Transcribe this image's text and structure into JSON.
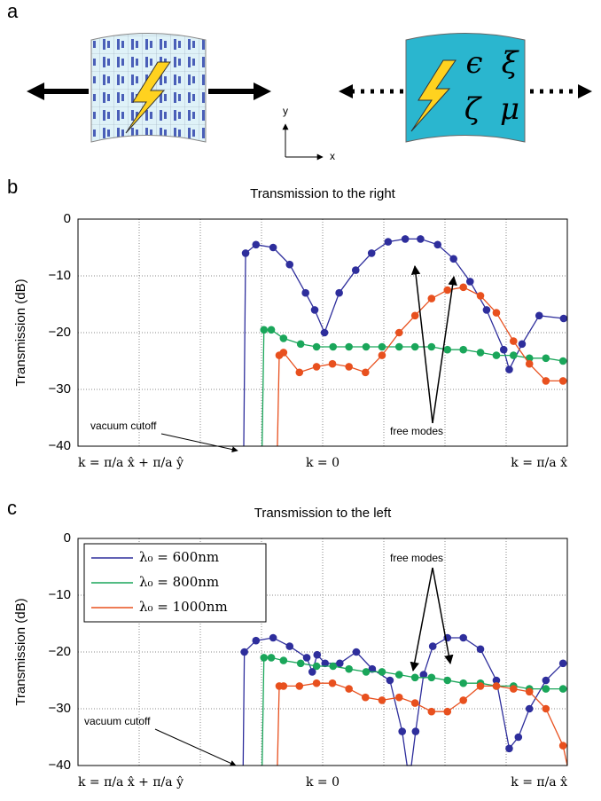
{
  "panel_a": {
    "label": "a",
    "axis_y": "y",
    "axis_x": "x",
    "symbols": [
      "ϵ",
      "ξ",
      "ζ",
      "μ"
    ]
  },
  "chart_data": [
    {
      "type": "line",
      "panel_label": "b",
      "title": "Transmission to the right",
      "ylabel": "Transmission (dB)",
      "ylim": [
        -40,
        0
      ],
      "yticks": [
        0,
        {
          "value": -10,
          "label": "−10"
        },
        {
          "value": -20,
          "label": "−20"
        },
        {
          "value": -30,
          "label": "−30"
        },
        {
          "value": -40,
          "label": "−40"
        }
      ],
      "xlim": [
        0,
        8
      ],
      "xgrid": [
        1,
        2,
        3,
        4,
        5,
        6,
        7
      ],
      "xlabels": [
        {
          "value": 0,
          "label": "k = π/a x̂ + π/a ŷ"
        },
        {
          "value": 4,
          "label": "k = 0"
        },
        {
          "value": 8,
          "label": "k = π/a x̂"
        }
      ],
      "grid": true,
      "annotations": [
        "vacuum cutoff",
        "free modes"
      ],
      "series": [
        {
          "color": "#2e2e9c",
          "x": [
            2.71,
            2.74,
            2.91,
            3.19,
            3.46,
            3.72,
            3.87,
            4.03,
            4.27,
            4.54,
            4.8,
            5.07,
            5.35,
            5.6,
            5.88,
            6.14,
            6.41,
            6.68,
            6.96,
            7.05,
            7.26,
            7.54,
            7.94
          ],
          "values": [
            -40,
            -6,
            -4.5,
            -5,
            -8,
            -13,
            -16,
            -20,
            -13,
            -9,
            -6,
            -4,
            -3.5,
            -3.5,
            -4.5,
            -7,
            -11,
            -16,
            -23,
            -26.5,
            -22,
            -17,
            -17.5
          ]
        },
        {
          "color": "#1aa65a",
          "x": [
            3.01,
            3.04,
            3.16,
            3.36,
            3.64,
            3.9,
            4.17,
            4.43,
            4.71,
            4.97,
            5.25,
            5.51,
            5.78,
            6.04,
            6.3,
            6.58,
            6.84,
            7.12,
            7.38,
            7.65,
            7.93
          ],
          "values": [
            -40,
            -19.5,
            -19.5,
            -21,
            -22,
            -22.5,
            -22.5,
            -22.5,
            -22.5,
            -22.5,
            -22.5,
            -22.5,
            -22.5,
            -23,
            -23,
            -23.5,
            -24,
            -24,
            -24.5,
            -24.5,
            -25
          ]
        },
        {
          "color": "#e8501e",
          "x": [
            3.26,
            3.29,
            3.36,
            3.62,
            3.9,
            4.16,
            4.43,
            4.7,
            4.97,
            5.25,
            5.51,
            5.78,
            6.04,
            6.3,
            6.58,
            6.84,
            7.12,
            7.38,
            7.65,
            7.93
          ],
          "values": [
            -40,
            -24,
            -23.5,
            -27,
            -26,
            -25.5,
            -26,
            -27,
            -24,
            -20,
            -17,
            -14,
            -12.5,
            -12,
            -13.5,
            -16.5,
            -21.5,
            -25.5,
            -28.5,
            -28.5
          ]
        }
      ]
    },
    {
      "type": "line",
      "panel_label": "c",
      "title": "Transmission to the left",
      "ylabel": "Transmission (dB)",
      "ylim": [
        -40,
        0
      ],
      "yticks": [
        0,
        {
          "value": -10,
          "label": "−10"
        },
        {
          "value": -20,
          "label": "−20"
        },
        {
          "value": -30,
          "label": "−30"
        },
        {
          "value": -40,
          "label": "−40"
        }
      ],
      "xlim": [
        0,
        8
      ],
      "xgrid": [
        1,
        2,
        3,
        4,
        5,
        6,
        7
      ],
      "xlabels": [
        {
          "value": 0,
          "label": "k = π/a x̂ + π/a ŷ"
        },
        {
          "value": 4,
          "label": "k = 0"
        },
        {
          "value": 8,
          "label": "k = π/a x̂"
        }
      ],
      "grid": true,
      "legend": "upper left",
      "annotations": [
        "vacuum cutoff",
        "free modes"
      ],
      "series": [
        {
          "name": "λ₀ = 600nm",
          "color": "#2e2e9c",
          "x": [
            2.7,
            2.72,
            2.91,
            3.19,
            3.46,
            3.74,
            3.83,
            3.91,
            4.04,
            4.28,
            4.55,
            4.81,
            5.1,
            5.3,
            5.38,
            5.45,
            5.52,
            5.65,
            5.8,
            6.04,
            6.3,
            6.58,
            6.84,
            7.05,
            7.2,
            7.38,
            7.65,
            7.93
          ],
          "values": [
            -40,
            -20,
            -18,
            -17.5,
            -19,
            -21,
            -23.5,
            -20.5,
            -22,
            -22,
            -20,
            -23,
            -25,
            -34,
            -40,
            -40,
            -34,
            -24,
            -19,
            -17.5,
            -17.5,
            -19.5,
            -25,
            -37,
            -35,
            -30,
            -25,
            -22
          ]
        },
        {
          "name": "λ₀ = 800nm",
          "color": "#1aa65a",
          "x": [
            3.01,
            3.04,
            3.16,
            3.36,
            3.64,
            3.9,
            4.17,
            4.43,
            4.71,
            4.97,
            5.25,
            5.51,
            5.78,
            6.04,
            6.3,
            6.58,
            6.84,
            7.12,
            7.38,
            7.65,
            7.93
          ],
          "values": [
            -40,
            -21,
            -21,
            -21.5,
            -22,
            -22.5,
            -22.5,
            -23,
            -23.5,
            -23.5,
            -24,
            -24.5,
            -24.5,
            -25,
            -25.5,
            -25.5,
            -26,
            -26,
            -26.5,
            -26.5,
            -26.5
          ]
        },
        {
          "name": "λ₀ = 1000nm",
          "color": "#e8501e",
          "x": [
            3.26,
            3.29,
            3.36,
            3.62,
            3.9,
            4.16,
            4.43,
            4.7,
            4.97,
            5.25,
            5.51,
            5.78,
            6.04,
            6.3,
            6.58,
            6.84,
            7.12,
            7.38,
            7.65,
            7.93,
            8
          ],
          "values": [
            -40,
            -26,
            -26,
            -26,
            -25.5,
            -25.5,
            -26.5,
            -28,
            -28.5,
            -28,
            -29,
            -30.5,
            -30.5,
            -28.5,
            -26,
            -26,
            -26.5,
            -27,
            -30,
            -36.5,
            -40
          ]
        }
      ]
    }
  ]
}
